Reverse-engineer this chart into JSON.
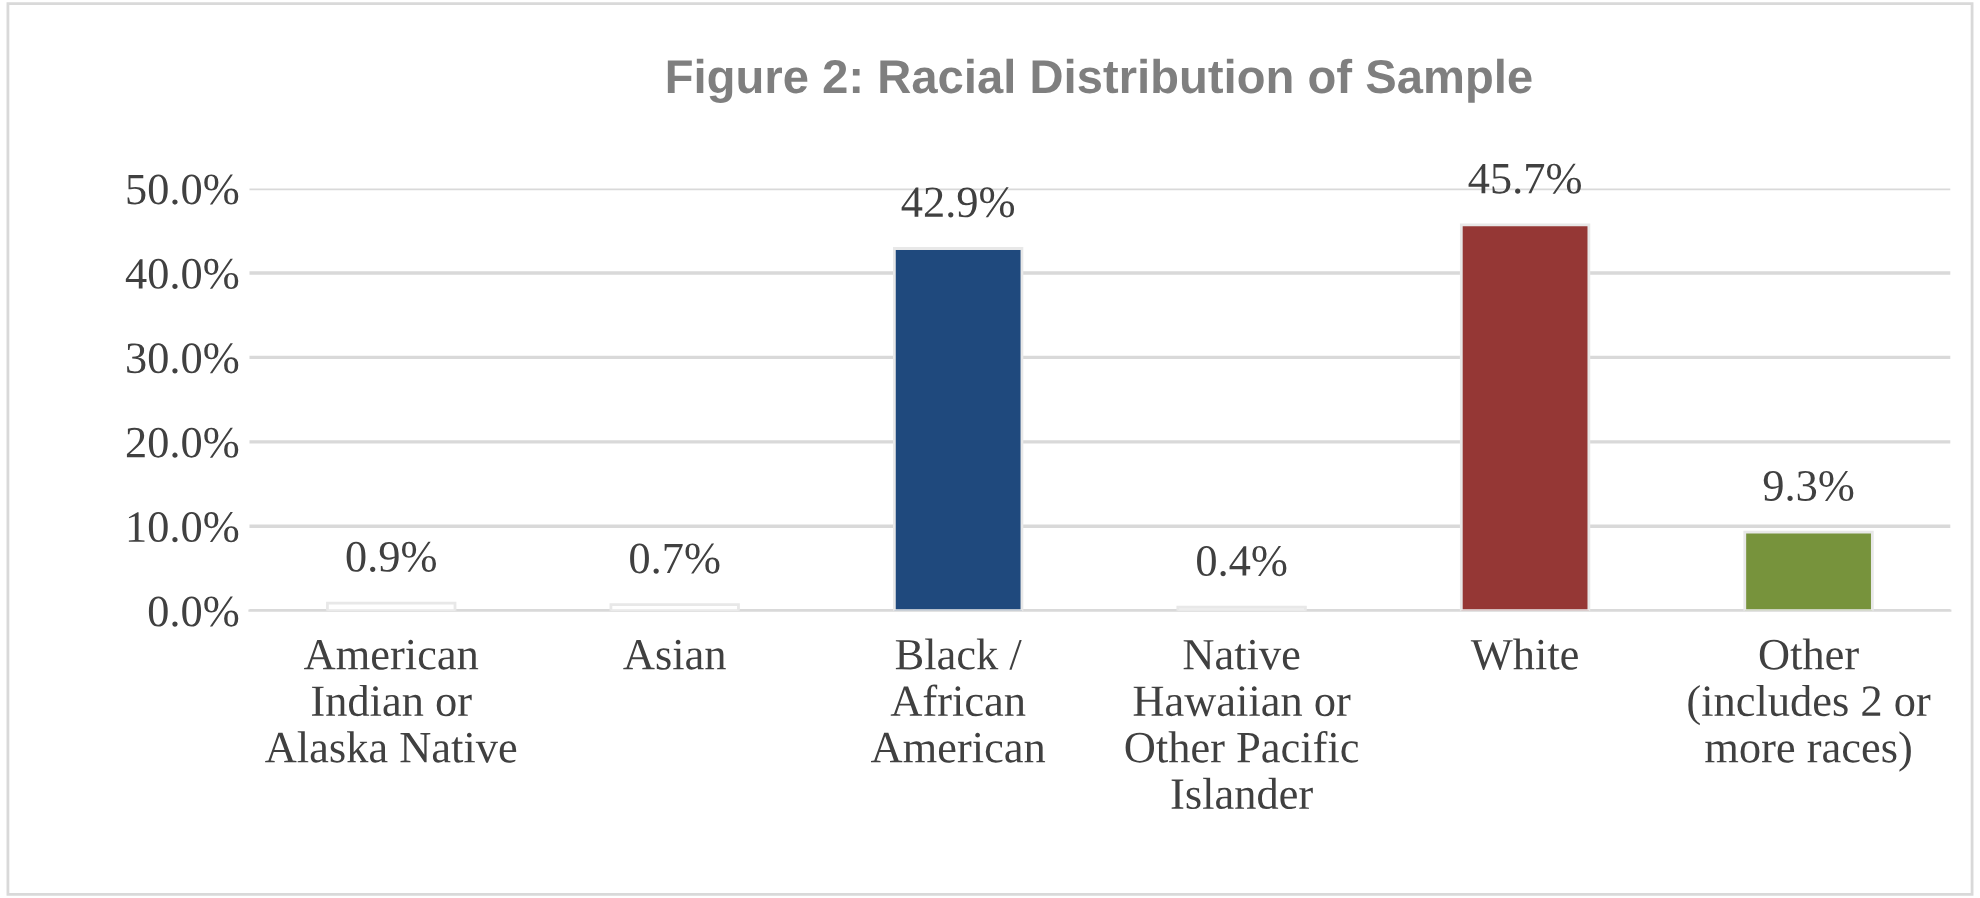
{
  "chart_data": {
    "type": "bar",
    "title": "Figure 2: Racial Distribution of Sample",
    "categories": [
      "American\nIndian or\nAlaska Native",
      "Asian",
      "Black /\nAfrican\nAmerican",
      "Native\nHawaiian or\nOther Pacific\nIslander",
      "White",
      "Other\n(includes 2 or\nmore races)"
    ],
    "values": [
      0.9,
      0.7,
      42.9,
      0.4,
      45.7,
      9.3
    ],
    "colors": [
      "#ffffff",
      "#ffffff",
      "#1f497d",
      "#ffffff",
      "#953735",
      "#77933c"
    ],
    "value_labels": [
      "0.9%",
      "0.7%",
      "42.9%",
      "0.4%",
      "45.7%",
      "9.3%"
    ],
    "ylim": [
      0,
      50
    ],
    "yticks": [
      {
        "value": 0,
        "label": "0.0%"
      },
      {
        "value": 10,
        "label": "10.0%"
      },
      {
        "value": 20,
        "label": "20.0%"
      },
      {
        "value": 30,
        "label": "30.0%"
      },
      {
        "value": 40,
        "label": "40.0%"
      },
      {
        "value": 50,
        "label": "50.0%"
      }
    ],
    "grid": "y",
    "legend": false
  }
}
